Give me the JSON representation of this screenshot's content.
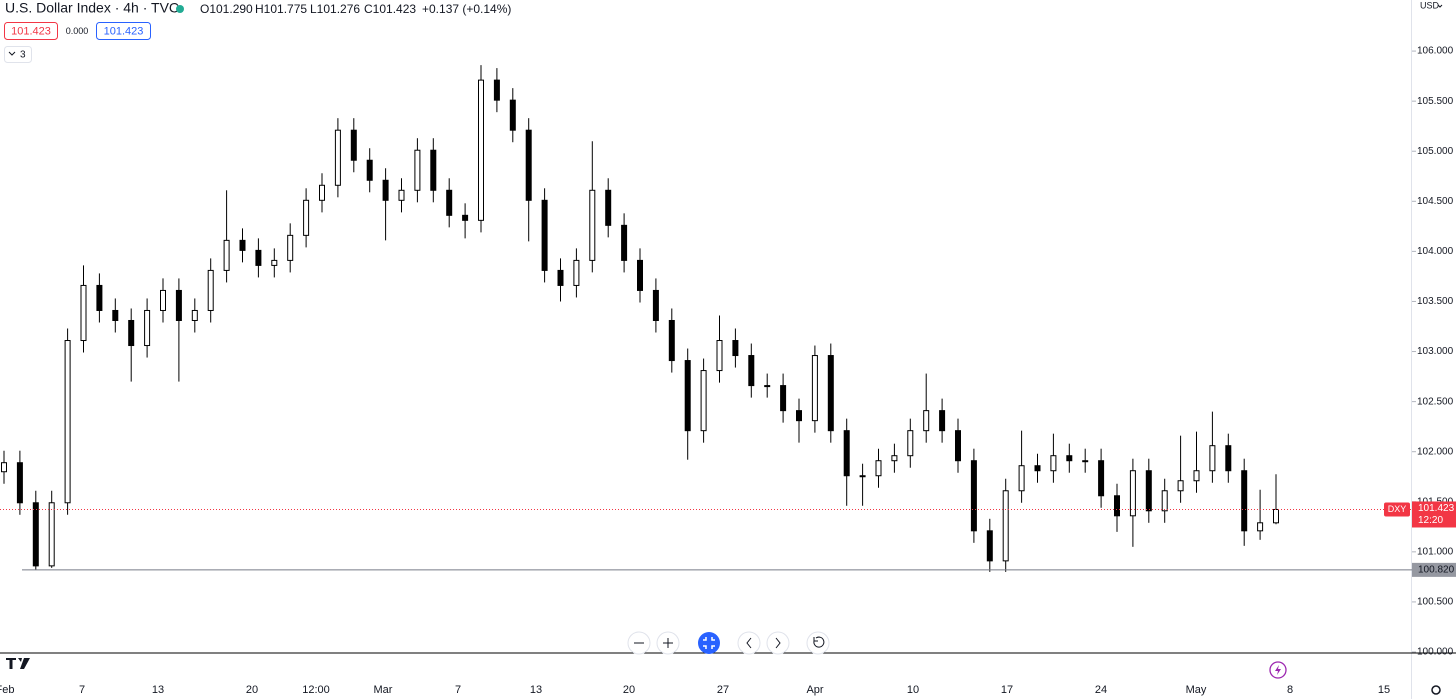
{
  "chart_data": {
    "type": "candlestick",
    "title": "U.S. Dollar Index · 4h · TVC",
    "header": {
      "open": "O101.290",
      "high": "H101.775",
      "low": "L101.276",
      "close": "C101.423",
      "change": "+0.137 (+0.14%)"
    },
    "badges": {
      "sell": "101.423",
      "spread": "0.000",
      "buy": "101.423",
      "indicators": "3"
    },
    "currency": "USD",
    "symbol": "DXY",
    "last_price": {
      "value": 101.423,
      "label": "101.423"
    },
    "countdown": "12:20",
    "horizontal_line": {
      "value": 100.82,
      "label": "100.820"
    },
    "xticks": [
      "Feb",
      "7",
      "13",
      "20",
      "12:00",
      "Mar",
      "7",
      "13",
      "20",
      "27",
      "Apr",
      "10",
      "17",
      "24",
      "May",
      "8",
      "15"
    ],
    "open": [
      101.8,
      101.89,
      101.49,
      100.86,
      101.49,
      103.11,
      103.66,
      103.41,
      103.31,
      103.06,
      103.41,
      103.61,
      103.31,
      103.41,
      103.81,
      104.11,
      104.01,
      103.86,
      103.91,
      104.16,
      104.51,
      104.66,
      105.21,
      104.91,
      104.71,
      104.51,
      104.61,
      105.01,
      104.61,
      104.36,
      104.31,
      105.71,
      105.51,
      105.21,
      104.51,
      103.81,
      103.66,
      103.91,
      104.61,
      104.26,
      103.91,
      103.61,
      103.31,
      102.91,
      102.21,
      102.81,
      103.11,
      102.96,
      102.66,
      102.66,
      102.41,
      102.31,
      102.96,
      102.21,
      101.76,
      101.76,
      101.91,
      101.96,
      102.21,
      102.41,
      102.21,
      101.91,
      101.21,
      100.91,
      101.61,
      101.86,
      101.81,
      101.96,
      101.91,
      101.91,
      101.56,
      101.36,
      101.81,
      101.41,
      101.61,
      101.71,
      101.81,
      102.06,
      101.81,
      101.21,
      101.29
    ],
    "high": [
      102.01,
      102.01,
      101.61,
      101.61,
      103.23,
      103.86,
      103.78,
      103.53,
      103.43,
      103.53,
      103.73,
      103.73,
      103.53,
      103.93,
      104.61,
      104.23,
      104.13,
      104.03,
      104.28,
      104.63,
      104.78,
      105.33,
      105.33,
      105.03,
      104.83,
      104.73,
      105.13,
      105.13,
      104.73,
      104.48,
      105.86,
      105.83,
      105.63,
      105.33,
      104.63,
      103.93,
      104.03,
      105.1,
      104.73,
      104.38,
      104.03,
      103.73,
      103.43,
      103.03,
      102.93,
      103.36,
      103.23,
      103.08,
      102.78,
      102.78,
      102.53,
      103.06,
      103.08,
      102.33,
      101.88,
      102.03,
      102.08,
      102.33,
      102.78,
      102.53,
      102.33,
      102.03,
      101.33,
      101.73,
      102.21,
      101.98,
      102.18,
      102.08,
      102.03,
      102.03,
      101.68,
      101.93,
      101.93,
      101.73,
      102.16,
      102.2,
      102.4,
      102.18,
      101.93,
      101.62,
      101.775
    ],
    "low": [
      101.68,
      101.37,
      100.82,
      100.84,
      101.37,
      102.99,
      103.29,
      103.19,
      102.7,
      102.94,
      103.29,
      102.7,
      103.19,
      103.29,
      103.69,
      103.89,
      103.74,
      103.74,
      103.79,
      104.04,
      104.39,
      104.54,
      104.79,
      104.59,
      104.11,
      104.39,
      104.49,
      104.49,
      104.24,
      104.13,
      104.19,
      105.39,
      105.09,
      104.1,
      103.69,
      103.5,
      103.54,
      103.79,
      104.14,
      103.79,
      103.49,
      103.19,
      102.79,
      101.92,
      102.09,
      102.69,
      102.84,
      102.54,
      102.54,
      102.29,
      102.09,
      102.19,
      102.09,
      101.46,
      101.46,
      101.64,
      101.79,
      101.84,
      102.09,
      102.09,
      101.79,
      101.09,
      100.8,
      100.8,
      101.49,
      101.69,
      101.69,
      101.79,
      101.79,
      101.44,
      101.2,
      101.05,
      101.29,
      101.29,
      101.49,
      101.59,
      101.69,
      101.69,
      101.06,
      101.12,
      101.276
    ],
    "close": [
      101.89,
      101.49,
      100.86,
      101.49,
      103.11,
      103.66,
      103.41,
      103.31,
      103.06,
      103.41,
      103.61,
      103.31,
      103.41,
      103.81,
      104.11,
      104.01,
      103.86,
      103.91,
      104.16,
      104.51,
      104.66,
      105.21,
      104.91,
      104.71,
      104.51,
      104.61,
      105.01,
      104.61,
      104.36,
      104.31,
      105.71,
      105.51,
      105.21,
      104.51,
      103.81,
      103.66,
      103.91,
      104.61,
      104.26,
      103.91,
      103.61,
      103.31,
      102.91,
      102.21,
      102.81,
      103.11,
      102.96,
      102.66,
      102.66,
      102.41,
      102.31,
      102.96,
      102.21,
      101.76,
      101.76,
      101.91,
      101.96,
      102.21,
      102.41,
      102.21,
      101.91,
      101.21,
      100.91,
      101.61,
      101.86,
      101.81,
      101.96,
      101.91,
      101.91,
      101.56,
      101.36,
      101.81,
      101.41,
      101.61,
      101.71,
      101.81,
      102.06,
      101.81,
      101.21,
      101.29,
      101.423
    ],
    "ylim": [
      100,
      106.51
    ],
    "yticks": [
      {
        "value": 100,
        "label": "100.000"
      },
      {
        "value": 100.5,
        "label": "100.500"
      },
      {
        "value": 101,
        "label": "101.000"
      },
      {
        "value": 101.5,
        "label": "101.500"
      },
      {
        "value": 102,
        "label": "102.000"
      },
      {
        "value": 102.5,
        "label": "102.500"
      },
      {
        "value": 103,
        "label": "103.000"
      },
      {
        "value": 103.5,
        "label": "103.500"
      },
      {
        "value": 104,
        "label": "104.000"
      },
      {
        "value": 104.5,
        "label": "104.500"
      },
      {
        "value": 105,
        "label": "105.000"
      },
      {
        "value": 105.5,
        "label": "105.500"
      },
      {
        "value": 106,
        "label": "106.000"
      }
    ],
    "color": "#000000"
  }
}
